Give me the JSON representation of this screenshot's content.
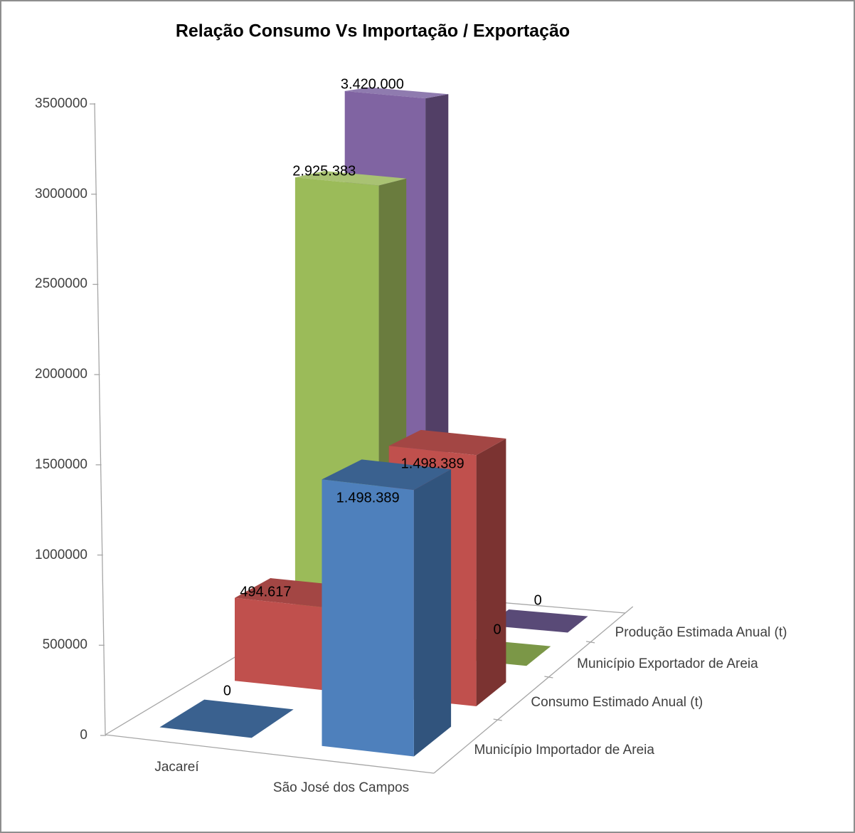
{
  "window": {
    "background": "#FFFFFF",
    "border_color": "#8E8E8E",
    "axis_line_color": "#A6A6A6",
    "text_color": "#3F3F3F"
  },
  "chart_data": {
    "type": "bar",
    "projection": "3d",
    "title": "Relação Consumo Vs Importação / Exportação",
    "legend_position": "none",
    "gridlines": false,
    "categories": [
      "Jacareí",
      "São José dos Campos"
    ],
    "series": [
      {
        "name": "Município Importador de Areia",
        "color": "#4E80BC",
        "side_color": "#31547D",
        "top_color": "#3A618F",
        "flat_color": "#3A618F",
        "values": [
          0,
          1498389
        ],
        "labels": [
          "0",
          "1.498.389"
        ],
        "label_placement": [
          "above",
          "inside"
        ]
      },
      {
        "name": "Consumo Estimado Anual (t)",
        "color": "#C0504D",
        "side_color": "#7B3331",
        "top_color": "#A34644",
        "flat_color": "#8F3B39",
        "values": [
          494617,
          1498389
        ],
        "labels": [
          "494.617",
          "1.498.389"
        ],
        "label_placement": [
          "above",
          "inside"
        ]
      },
      {
        "name": "Município Exportador de Areia",
        "color": "#9BBB59",
        "side_color": "#6A7C3E",
        "top_color": "#A9C273",
        "flat_color": "#7B9747",
        "values": [
          2925383,
          0
        ],
        "labels": [
          "2.925.383",
          "0"
        ],
        "label_placement": [
          "above",
          "above"
        ]
      },
      {
        "name": "Produção Estimada Anual (t)",
        "color": "#8064A2",
        "side_color": "#523F66",
        "top_color": "#8F7BAF",
        "flat_color": "#594A77",
        "values": [
          3420000,
          0
        ],
        "labels": [
          "3.420.000",
          "0"
        ],
        "label_placement": [
          "above",
          "above"
        ]
      }
    ],
    "value_axis": {
      "min": 0,
      "max": 3500000,
      "step": 500000,
      "ticks": [
        "0",
        "500000",
        "1000000",
        "1500000",
        "2000000",
        "2500000",
        "3000000",
        "3500000"
      ]
    }
  }
}
